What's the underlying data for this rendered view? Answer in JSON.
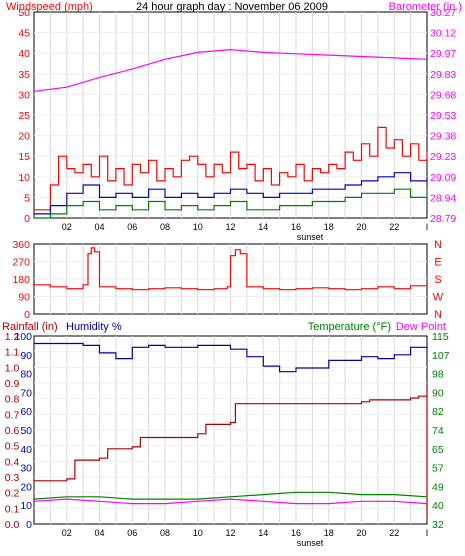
{
  "title": "24 hour graph day : November 06 2009",
  "colors": {
    "windspeed": "#ff0000",
    "wind_gust_avg": "#0000cc",
    "wind_low": "#008000",
    "barometer": "#ff00ff",
    "direction": "#ff0000",
    "humidity": "#0000aa",
    "rainfall": "#aa0000",
    "temperature": "#008000",
    "dew_point": "#ff00ff",
    "grid": "#d8d8d8",
    "frame": "#000000"
  },
  "chart_data": [
    {
      "type": "line",
      "panel": "wind_barometer",
      "left_axis_label": "Windspeed (mph)",
      "right_axis_label": "Barometer (in.)",
      "xlabel": "sunset",
      "x_ticks": [
        "02",
        "04",
        "06",
        "08",
        "10",
        "12",
        "14",
        "16",
        "18",
        "20",
        "22",
        "I"
      ],
      "y_ticks_left": [
        "0",
        "5",
        "10",
        "15",
        "20",
        "25",
        "30",
        "35",
        "40",
        "45",
        "50"
      ],
      "y_ticks_right": [
        "28.79",
        "28.94",
        "29.09",
        "29.23",
        "29.38",
        "29.53",
        "29.68",
        "29.83",
        "29.97",
        "30.12",
        "30.27"
      ],
      "ylim_left": [
        0,
        50
      ],
      "ylim_right": [
        28.79,
        30.27
      ],
      "grid": true,
      "series": [
        {
          "name": "Windspeed (mph)",
          "axis": "left",
          "color": "windspeed",
          "x": [
            0,
            1,
            1.5,
            2,
            2.5,
            3,
            3.5,
            4,
            4.5,
            5,
            5.5,
            6,
            6.5,
            7,
            7.5,
            8,
            8.5,
            9,
            9.5,
            10,
            10.5,
            11,
            11.5,
            12,
            12.5,
            13,
            13.5,
            14,
            14.5,
            15,
            15.5,
            16,
            16.5,
            17,
            17.5,
            18,
            18.5,
            19,
            19.5,
            20,
            20.5,
            21,
            21.5,
            22,
            22.5,
            23,
            23.5,
            24
          ],
          "values": [
            2,
            8,
            15,
            12,
            11,
            13,
            10,
            15,
            9,
            12,
            8,
            13,
            11,
            14,
            9,
            12,
            10,
            14,
            15,
            13,
            10,
            13,
            11,
            16,
            12,
            13,
            9,
            12,
            8,
            11,
            10,
            13,
            9,
            12,
            11,
            13,
            12,
            16,
            14,
            18,
            15,
            22,
            17,
            19,
            15,
            18,
            14,
            16
          ]
        },
        {
          "name": "",
          "axis": "left",
          "color": "wind_gust_avg",
          "x": [
            0,
            1,
            2,
            3,
            4,
            5,
            6,
            7,
            8,
            9,
            10,
            11,
            12,
            13,
            14,
            15,
            16,
            17,
            18,
            19,
            20,
            21,
            22,
            23,
            24
          ],
          "values": [
            1,
            3,
            6,
            8,
            5,
            6,
            5,
            7,
            5,
            6,
            5,
            6,
            7,
            6,
            5,
            6,
            6,
            7,
            7,
            8,
            9,
            10,
            11,
            9,
            10
          ]
        },
        {
          "name": "",
          "axis": "left",
          "color": "wind_low",
          "x": [
            0,
            1,
            2,
            3,
            4,
            5,
            6,
            7,
            8,
            9,
            10,
            11,
            12,
            13,
            14,
            15,
            16,
            17,
            18,
            19,
            20,
            21,
            22,
            23,
            24
          ],
          "values": [
            0,
            1,
            3,
            4,
            2,
            3,
            2,
            4,
            2,
            3,
            2,
            3,
            4,
            2,
            2,
            3,
            3,
            4,
            4,
            5,
            6,
            6,
            7,
            5,
            7
          ]
        },
        {
          "name": "Barometer (in.)",
          "axis": "right",
          "color": "barometer",
          "x": [
            0,
            2,
            4,
            6,
            8,
            10,
            12,
            14,
            16,
            18,
            20,
            22,
            24
          ],
          "values": [
            29.7,
            29.73,
            29.8,
            29.86,
            29.93,
            29.98,
            30.0,
            29.98,
            29.97,
            29.96,
            29.95,
            29.94,
            29.93
          ]
        }
      ]
    },
    {
      "type": "line",
      "panel": "wind_direction",
      "x_ticks": [],
      "y_ticks_left": [
        "0",
        "90",
        "180",
        "270",
        "360"
      ],
      "right_axis_letters": [
        "N",
        "W",
        "S",
        "E",
        "N"
      ],
      "ylim": [
        0,
        360
      ],
      "grid": true,
      "series": [
        {
          "name": "",
          "color": "direction",
          "x": [
            0,
            1,
            2,
            3,
            3.3,
            3.5,
            3.7,
            4,
            5,
            6,
            7,
            8,
            9,
            10,
            11,
            11.8,
            12,
            12.3,
            12.6,
            13,
            14,
            15,
            16,
            17,
            18,
            19,
            20,
            21,
            22,
            23,
            24
          ],
          "values": [
            150,
            140,
            130,
            150,
            310,
            340,
            320,
            140,
            130,
            125,
            130,
            135,
            130,
            125,
            130,
            140,
            300,
            330,
            310,
            140,
            130,
            125,
            130,
            135,
            130,
            125,
            130,
            140,
            130,
            145,
            150
          ]
        }
      ]
    },
    {
      "type": "line",
      "panel": "rain_humidity_temp",
      "left_axis_label_1": "Rainfall (in)",
      "left_axis_label_2": "Humidity %",
      "right_axis_label_1": "Temperature (°F)",
      "right_axis_label_2": "Dew Point",
      "xlabel": "sunset",
      "x_ticks": [
        "02",
        "04",
        "06",
        "08",
        "10",
        "12",
        "14",
        "16",
        "18",
        "20",
        "22",
        "I"
      ],
      "y_ticks_rain": [
        "0.0",
        "0.1",
        "0.2",
        "0.3",
        "0.4",
        "0.5",
        "0.6",
        "0.7",
        "0.8",
        "0.9",
        "1.0",
        "1.1",
        "1.2"
      ],
      "y_ticks_humidity": [
        "0",
        "10",
        "20",
        "30",
        "40",
        "50",
        "60",
        "70",
        "80",
        "90",
        "100"
      ],
      "y_ticks_temp": [
        "32",
        "40",
        "49",
        "57",
        "65",
        "74",
        "82",
        "90",
        "98",
        "107",
        "115"
      ],
      "ylim_humidity": [
        0,
        100
      ],
      "ylim_temp": [
        32,
        115
      ],
      "grid": true,
      "series": [
        {
          "name": "Humidity %",
          "axis": "humidity",
          "color": "humidity",
          "x": [
            0,
            2,
            3,
            4,
            5,
            6,
            7,
            8,
            10,
            12,
            13,
            14,
            15,
            16,
            18,
            20,
            21,
            22,
            23,
            24
          ],
          "values": [
            96,
            96,
            95,
            91,
            88,
            94,
            95,
            94,
            95,
            93,
            89,
            84,
            81,
            83,
            87,
            89,
            88,
            90,
            94,
            91
          ]
        },
        {
          "name": "Rainfall (in)",
          "axis": "humidity",
          "color": "rainfall",
          "x": [
            0,
            2,
            2.5,
            4,
            4.5,
            6,
            6.5,
            10,
            10.5,
            12,
            12.3,
            20,
            20.5,
            23,
            23.5,
            24,
            24
          ],
          "values": [
            23,
            24,
            34,
            35,
            40,
            41,
            46,
            48,
            53,
            54,
            64,
            65,
            66,
            67,
            68,
            72,
            2
          ]
        },
        {
          "name": "Temperature (°F)",
          "axis": "temp",
          "color": "temperature",
          "x": [
            0,
            2,
            4,
            6,
            8,
            10,
            12,
            14,
            16,
            18,
            20,
            22,
            24
          ],
          "values": [
            43,
            44,
            44,
            43,
            43,
            43,
            44,
            45,
            46,
            46,
            45,
            45,
            44
          ]
        },
        {
          "name": "Dew Point",
          "axis": "temp",
          "color": "dew_point",
          "x": [
            0,
            2,
            4,
            6,
            8,
            10,
            12,
            14,
            16,
            18,
            20,
            22,
            24
          ],
          "values": [
            42,
            43,
            42,
            41,
            41,
            42,
            43,
            42,
            41,
            41,
            42,
            42,
            41
          ]
        }
      ]
    }
  ]
}
